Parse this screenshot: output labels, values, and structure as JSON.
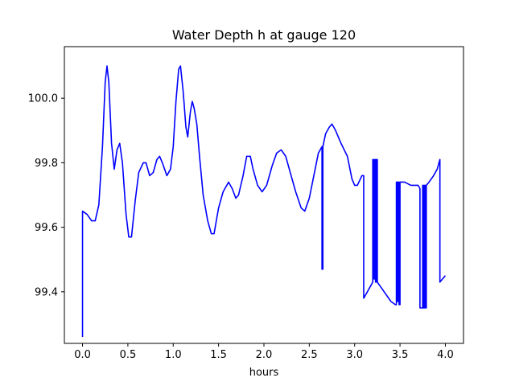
{
  "chart_data": {
    "type": "line",
    "title": "Water Depth h at gauge 120",
    "xlabel": "hours",
    "ylabel": "",
    "xlim": [
      -0.2,
      4.2
    ],
    "ylim": [
      99.24,
      100.16
    ],
    "x_ticks": [
      0.0,
      0.5,
      1.0,
      1.5,
      2.0,
      2.5,
      3.0,
      3.5,
      4.0
    ],
    "x_tick_labels": [
      "0.0",
      "0.5",
      "1.0",
      "1.5",
      "2.0",
      "2.5",
      "3.0",
      "3.5",
      "4.0"
    ],
    "y_ticks": [
      99.4,
      99.6,
      99.8,
      100.0
    ],
    "y_tick_labels": [
      "99.4",
      "99.6",
      "99.8",
      "100.0"
    ],
    "grid": false,
    "series": [
      {
        "color": "#0000ff",
        "points": [
          [
            0.0,
            99.26
          ],
          [
            0.0,
            99.65
          ],
          [
            0.05,
            99.64
          ],
          [
            0.1,
            99.62
          ],
          [
            0.14,
            99.62
          ],
          [
            0.18,
            99.67
          ],
          [
            0.22,
            99.85
          ],
          [
            0.25,
            100.05
          ],
          [
            0.27,
            100.1
          ],
          [
            0.29,
            100.05
          ],
          [
            0.32,
            99.86
          ],
          [
            0.35,
            99.78
          ],
          [
            0.38,
            99.84
          ],
          [
            0.41,
            99.86
          ],
          [
            0.44,
            99.8
          ],
          [
            0.48,
            99.64
          ],
          [
            0.51,
            99.57
          ],
          [
            0.54,
            99.57
          ],
          [
            0.58,
            99.68
          ],
          [
            0.62,
            99.77
          ],
          [
            0.67,
            99.8
          ],
          [
            0.7,
            99.8
          ],
          [
            0.74,
            99.76
          ],
          [
            0.78,
            99.77
          ],
          [
            0.82,
            99.81
          ],
          [
            0.85,
            99.82
          ],
          [
            0.88,
            99.8
          ],
          [
            0.93,
            99.76
          ],
          [
            0.97,
            99.78
          ],
          [
            1.0,
            99.85
          ],
          [
            1.03,
            99.99
          ],
          [
            1.06,
            100.09
          ],
          [
            1.08,
            100.1
          ],
          [
            1.11,
            100.02
          ],
          [
            1.14,
            99.91
          ],
          [
            1.16,
            99.88
          ],
          [
            1.19,
            99.96
          ],
          [
            1.21,
            99.99
          ],
          [
            1.23,
            99.97
          ],
          [
            1.26,
            99.92
          ],
          [
            1.29,
            99.82
          ],
          [
            1.33,
            99.7
          ],
          [
            1.38,
            99.62
          ],
          [
            1.42,
            99.58
          ],
          [
            1.45,
            99.58
          ],
          [
            1.5,
            99.66
          ],
          [
            1.55,
            99.71
          ],
          [
            1.61,
            99.74
          ],
          [
            1.65,
            99.72
          ],
          [
            1.69,
            99.69
          ],
          [
            1.72,
            99.7
          ],
          [
            1.77,
            99.76
          ],
          [
            1.81,
            99.82
          ],
          [
            1.85,
            99.82
          ],
          [
            1.88,
            99.78
          ],
          [
            1.93,
            99.73
          ],
          [
            1.98,
            99.71
          ],
          [
            2.03,
            99.73
          ],
          [
            2.09,
            99.79
          ],
          [
            2.14,
            99.83
          ],
          [
            2.19,
            99.84
          ],
          [
            2.24,
            99.82
          ],
          [
            2.29,
            99.77
          ],
          [
            2.35,
            99.71
          ],
          [
            2.41,
            99.66
          ],
          [
            2.45,
            99.65
          ],
          [
            2.5,
            99.69
          ],
          [
            2.55,
            99.76
          ],
          [
            2.6,
            99.83
          ],
          [
            2.64,
            99.85
          ],
          [
            2.64,
            99.47
          ],
          [
            2.65,
            99.47
          ],
          [
            2.65,
            99.85
          ],
          [
            2.68,
            99.89
          ],
          [
            2.72,
            99.91
          ],
          [
            2.75,
            99.92
          ],
          [
            2.79,
            99.9
          ],
          [
            2.85,
            99.86
          ],
          [
            2.92,
            99.82
          ],
          [
            2.97,
            99.75
          ],
          [
            3.0,
            99.73
          ],
          [
            3.03,
            99.73
          ],
          [
            3.08,
            99.76
          ],
          [
            3.1,
            99.76
          ],
          [
            3.1,
            99.38
          ],
          [
            3.12,
            99.39
          ],
          [
            3.18,
            99.42
          ],
          [
            3.2,
            99.43
          ],
          [
            3.2,
            99.81
          ],
          [
            3.21,
            99.81
          ],
          [
            3.21,
            99.44
          ],
          [
            3.22,
            99.44
          ],
          [
            3.22,
            99.81
          ],
          [
            3.23,
            99.81
          ],
          [
            3.23,
            99.43
          ],
          [
            3.24,
            99.43
          ],
          [
            3.24,
            99.81
          ],
          [
            3.25,
            99.81
          ],
          [
            3.25,
            99.43
          ],
          [
            3.3,
            99.41
          ],
          [
            3.4,
            99.37
          ],
          [
            3.45,
            99.36
          ],
          [
            3.46,
            99.36
          ],
          [
            3.46,
            99.74
          ],
          [
            3.47,
            99.74
          ],
          [
            3.47,
            99.37
          ],
          [
            3.48,
            99.37
          ],
          [
            3.48,
            99.74
          ],
          [
            3.49,
            99.74
          ],
          [
            3.49,
            99.36
          ],
          [
            3.5,
            99.36
          ],
          [
            3.5,
            99.74
          ],
          [
            3.55,
            99.74
          ],
          [
            3.62,
            99.73
          ],
          [
            3.7,
            99.73
          ],
          [
            3.72,
            99.72
          ],
          [
            3.72,
            99.35
          ],
          [
            3.75,
            99.35
          ],
          [
            3.75,
            99.73
          ],
          [
            3.76,
            99.73
          ],
          [
            3.76,
            99.35
          ],
          [
            3.77,
            99.35
          ],
          [
            3.77,
            99.73
          ],
          [
            3.78,
            99.73
          ],
          [
            3.78,
            99.35
          ],
          [
            3.79,
            99.35
          ],
          [
            3.79,
            99.73
          ],
          [
            3.82,
            99.74
          ],
          [
            3.87,
            99.76
          ],
          [
            3.91,
            99.78
          ],
          [
            3.94,
            99.81
          ],
          [
            3.94,
            99.43
          ],
          [
            3.97,
            99.44
          ],
          [
            4.0,
            99.45
          ]
        ]
      }
    ]
  }
}
